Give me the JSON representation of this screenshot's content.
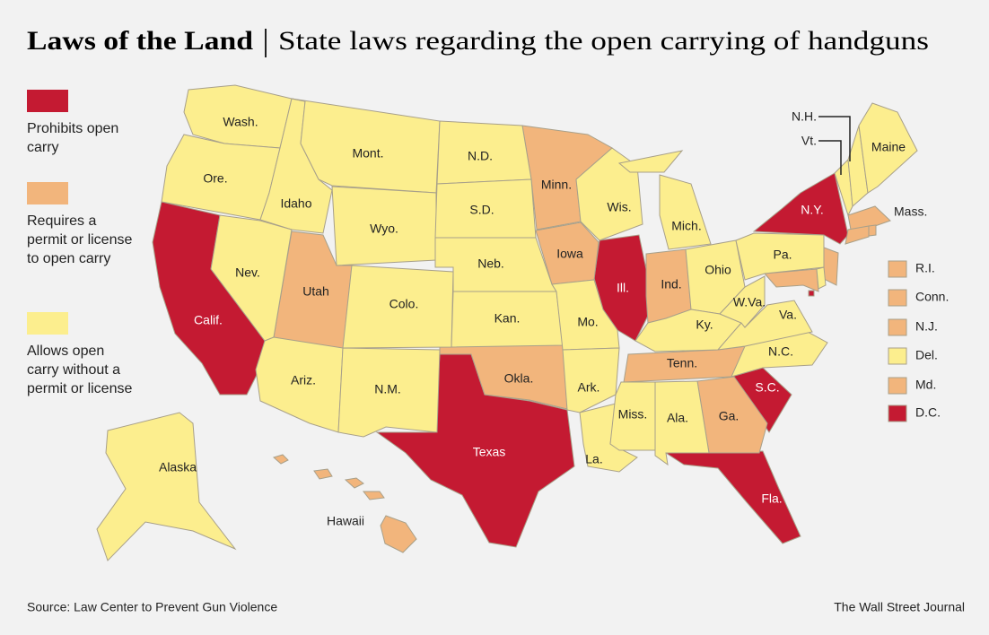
{
  "header": {
    "title": "Laws of the Land",
    "subtitle": "State laws regarding the open carrying of handguns"
  },
  "categories": [
    {
      "label": "Prohibits open carry",
      "color": "#c41a32",
      "states": [
        "Calif.",
        "Texas",
        "Ill.",
        "N.Y.",
        "S.C.",
        "Fla.",
        "D.C."
      ]
    },
    {
      "label": "Requires a permit or license to open carry",
      "color": "#f2b57c",
      "states": [
        "Utah",
        "Minn.",
        "Iowa",
        "Okla.",
        "Ind.",
        "Tenn.",
        "Ga.",
        "Mass.",
        "R.I.",
        "Conn.",
        "N.J.",
        "Md.",
        "Hawaii"
      ]
    },
    {
      "label": "Allows open carry without a permit or license",
      "color": "#fcee8e",
      "states": [
        "Wash.",
        "Ore.",
        "Idaho",
        "Mont.",
        "Nev.",
        "Wyo.",
        "Ariz.",
        "Colo.",
        "N.M.",
        "N.D.",
        "S.D.",
        "Neb.",
        "Kan.",
        "Mo.",
        "Ark.",
        "La.",
        "Wis.",
        "Mich.",
        "Ohio",
        "Ky.",
        "Miss.",
        "Ala.",
        "N.C.",
        "Va.",
        "W.Va.",
        "Pa.",
        "Vt.",
        "N.H.",
        "Maine",
        "Del.",
        "Alaska"
      ]
    }
  ],
  "footer": {
    "source": "Source: Law Center to Prevent Gun Violence",
    "credit": "The Wall Street Journal"
  }
}
